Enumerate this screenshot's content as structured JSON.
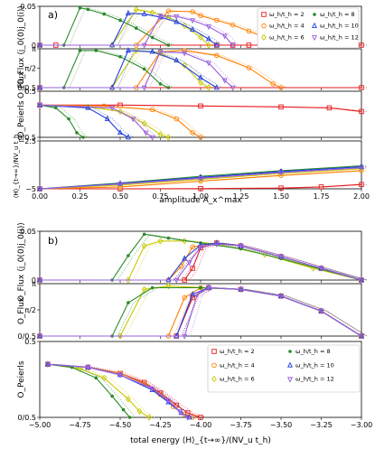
{
  "figure": {
    "panel_a_label": "a)",
    "panel_b_label": "b)"
  },
  "legend": {
    "items": [
      {
        "label": "ω_h/t_h = 2",
        "color": "#e41a1c",
        "marker": "square"
      },
      {
        "label": "ω_h/t_h = 4",
        "color": "#ff7f00",
        "marker": "circle"
      },
      {
        "label": "ω_h/t_h = 6",
        "color": "#c8c800",
        "marker": "diamond"
      },
      {
        "label": "ω_h/t_h = 8",
        "color": "#2a8a2a",
        "marker": "star"
      },
      {
        "label": "ω_h/t_h = 10",
        "color": "#1f3fe0",
        "marker": "triangle-up"
      },
      {
        "label": "ω_h/t_h = 12",
        "color": "#9a60e0",
        "marker": "triangle-down"
      }
    ]
  },
  "chart_data": [
    {
      "panel": "a1",
      "type": "line",
      "ylabel": "O_Flux ⟨j_0(0)j_0(i)⟩",
      "xlim": [
        0,
        2
      ],
      "ylim": [
        0,
        0.05
      ],
      "yticks": [
        "0",
        "0.05"
      ],
      "xticklabels": [],
      "series": [
        {
          "name": "ω_h/t_h = 2",
          "x": [
            0,
            0.1,
            1.1,
            1.2,
            1.3,
            1.4,
            1.5,
            1.6,
            1.7,
            1.8,
            1.9,
            2.0
          ],
          "y": [
            0,
            0,
            0,
            0,
            0,
            0,
            0,
            0,
            0,
            0,
            0,
            0
          ]
        },
        {
          "name": "ω_h/t_h = 4",
          "x": [
            0,
            0.6,
            0.8,
            0.95,
            1.0,
            1.1,
            1.2,
            1.3,
            1.4,
            1.5
          ],
          "y": [
            0,
            0,
            0.044,
            0.043,
            0.038,
            0.032,
            0.026,
            0.018,
            0.01,
            0.0
          ]
        },
        {
          "name": "ω_h/t_h = 6",
          "x": [
            0,
            0.45,
            0.6,
            0.7,
            0.8,
            0.9,
            1.0,
            1.05
          ],
          "y": [
            0,
            0,
            0.046,
            0.042,
            0.036,
            0.025,
            0.01,
            0.0
          ]
        },
        {
          "name": "ω_h/t_h = 8",
          "x": [
            0,
            0.15,
            0.25,
            0.3,
            0.4,
            0.5,
            0.6,
            0.7,
            0.8
          ],
          "y": [
            0,
            0,
            0.048,
            0.046,
            0.04,
            0.032,
            0.022,
            0.01,
            0.0
          ]
        },
        {
          "name": "ω_h/t_h = 10",
          "x": [
            0,
            0.45,
            0.55,
            0.65,
            0.75,
            0.85,
            0.95,
            1.05,
            1.1
          ],
          "y": [
            0,
            0,
            0.041,
            0.04,
            0.036,
            0.03,
            0.02,
            0.008,
            0.0
          ]
        },
        {
          "name": "ω_h/t_h = 12",
          "x": [
            0,
            0.65,
            0.75,
            0.85,
            0.95,
            1.05,
            1.15,
            1.2
          ],
          "y": [
            0,
            0,
            0.038,
            0.037,
            0.032,
            0.024,
            0.012,
            0.0
          ]
        }
      ]
    },
    {
      "panel": "a2",
      "type": "line",
      "ylabel": "O_Flux",
      "xlim": [
        0,
        2
      ],
      "ylim": [
        0,
        3.1416
      ],
      "yticks": [
        "0/0.5",
        "π/2",
        "π"
      ],
      "xticklabels": [],
      "series": [
        {
          "name": "ω_h/t_h = 2",
          "x": [
            0,
            2.0
          ],
          "y": [
            0,
            0
          ]
        },
        {
          "name": "ω_h/t_h = 4",
          "x": [
            0,
            0.6,
            0.75,
            0.9,
            1.1,
            1.3,
            1.45,
            1.5
          ],
          "y": [
            0,
            0,
            2.9,
            3.0,
            2.6,
            1.6,
            0.3,
            0
          ]
        },
        {
          "name": "ω_h/t_h = 6",
          "x": [
            0,
            0.45,
            0.6,
            0.75,
            0.9,
            1.0,
            1.05
          ],
          "y": [
            0,
            0,
            3.0,
            2.8,
            1.8,
            0.4,
            0
          ]
        },
        {
          "name": "ω_h/t_h = 8",
          "x": [
            0,
            0.15,
            0.25,
            0.35,
            0.5,
            0.65,
            0.75,
            0.8
          ],
          "y": [
            0,
            0,
            3.0,
            3.0,
            2.5,
            1.5,
            0.3,
            0
          ]
        },
        {
          "name": "ω_h/t_h = 10",
          "x": [
            0,
            0.45,
            0.55,
            0.7,
            0.85,
            1.0,
            1.1
          ],
          "y": [
            0,
            0,
            3.0,
            2.9,
            2.2,
            0.8,
            0
          ]
        },
        {
          "name": "ω_h/t_h = 12",
          "x": [
            0,
            0.65,
            0.75,
            0.9,
            1.05,
            1.15,
            1.2
          ],
          "y": [
            0,
            0,
            2.9,
            2.8,
            2.0,
            0.6,
            0
          ]
        }
      ]
    },
    {
      "panel": "a3",
      "type": "line",
      "ylabel": "O_Peierls",
      "xlim": [
        0,
        2
      ],
      "ylim": [
        0,
        0.5
      ],
      "yticks": [
        "0/0.5",
        "0.5"
      ],
      "xticklabels": [],
      "series": [
        {
          "name": "ω_h/t_h = 2",
          "x": [
            0,
            0.5,
            1.0,
            1.5,
            1.8,
            2.0
          ],
          "y": [
            0.35,
            0.35,
            0.34,
            0.33,
            0.32,
            0.28
          ]
        },
        {
          "name": "ω_h/t_h = 4",
          "x": [
            0,
            0.4,
            0.7,
            0.85,
            0.95,
            1.0
          ],
          "y": [
            0.35,
            0.34,
            0.3,
            0.2,
            0.05,
            0
          ]
        },
        {
          "name": "ω_h/t_h = 6",
          "x": [
            0,
            0.3,
            0.5,
            0.65,
            0.75,
            0.8
          ],
          "y": [
            0.35,
            0.33,
            0.28,
            0.15,
            0.03,
            0
          ]
        },
        {
          "name": "ω_h/t_h = 8",
          "x": [
            0,
            0.1,
            0.18,
            0.23,
            0.27
          ],
          "y": [
            0.35,
            0.32,
            0.2,
            0.05,
            0
          ]
        },
        {
          "name": "ω_h/t_h = 10",
          "x": [
            0,
            0.3,
            0.42,
            0.5,
            0.55
          ],
          "y": [
            0.35,
            0.32,
            0.2,
            0.05,
            0
          ]
        },
        {
          "name": "ω_h/t_h = 12",
          "x": [
            0,
            0.45,
            0.58,
            0.66,
            0.7
          ],
          "y": [
            0.35,
            0.32,
            0.2,
            0.05,
            0
          ]
        }
      ]
    },
    {
      "panel": "a4",
      "type": "line",
      "xlabel": "amplitude A_x^max",
      "ylabel": "⟨H⟩_{t→∞}/NV_u t_h",
      "xlim": [
        0,
        2
      ],
      "ylim": [
        -5,
        0
      ],
      "yticks": [
        "−5",
        "−2.5"
      ],
      "xticks": [
        "0.00",
        "0.25",
        "0.50",
        "0.75",
        "1.00",
        "1.25",
        "1.50",
        "1.75",
        "2.00"
      ],
      "series": [
        {
          "name": "ω_h/t_h = 2",
          "x": [
            0,
            0.5,
            1.0,
            1.5,
            1.75,
            2.0
          ],
          "y": [
            -5,
            -5,
            -4.98,
            -4.92,
            -4.8,
            -4.55
          ]
        },
        {
          "name": "ω_h/t_h = 4",
          "x": [
            0,
            0.5,
            1.0,
            1.5,
            2.0
          ],
          "y": [
            -5,
            -4.8,
            -4.2,
            -3.6,
            -3.1
          ]
        },
        {
          "name": "ω_h/t_h = 6",
          "x": [
            0,
            0.5,
            1.0,
            1.5,
            2.0
          ],
          "y": [
            -5,
            -4.6,
            -4.0,
            -3.4,
            -2.9
          ]
        },
        {
          "name": "ω_h/t_h = 8",
          "x": [
            0,
            0.5,
            1.0,
            1.5,
            2.0
          ],
          "y": [
            -5,
            -4.4,
            -3.7,
            -3.1,
            -2.6
          ]
        },
        {
          "name": "ω_h/t_h = 10",
          "x": [
            0,
            0.5,
            1.0,
            1.5,
            2.0
          ],
          "y": [
            -5,
            -4.45,
            -3.8,
            -3.2,
            -2.7
          ]
        },
        {
          "name": "ω_h/t_h = 12",
          "x": [
            0,
            0.5,
            1.0,
            1.5,
            2.0
          ],
          "y": [
            -5,
            -4.5,
            -3.9,
            -3.3,
            -2.8
          ]
        }
      ]
    },
    {
      "panel": "b1",
      "type": "line",
      "ylabel": "O_Flux ⟨j_0(0)j_0(i)⟩",
      "xlim": [
        -5,
        -3
      ],
      "ylim": [
        0,
        0.05
      ],
      "yticks": [
        "0",
        "0.05"
      ],
      "xticklabels": [],
      "series": [
        {
          "name": "ω_h/t_h = 2",
          "x": [
            -5,
            -4.1,
            -4.05,
            -4.0,
            -3.9,
            -3.75,
            -3.5,
            -3.25,
            -3.0
          ],
          "y": [
            0,
            0,
            0.012,
            0.033,
            0.038,
            0.035,
            0.024,
            0.012,
            0
          ]
        },
        {
          "name": "ω_h/t_h = 4",
          "x": [
            -5,
            -4.2,
            -4.12,
            -4.05,
            -3.9,
            -3.75,
            -3.5,
            -3.25,
            -3.0
          ],
          "y": [
            0,
            0,
            0.014,
            0.034,
            0.038,
            0.035,
            0.024,
            0.012,
            0
          ]
        },
        {
          "name": "ω_h/t_h = 6",
          "x": [
            -5,
            -4.45,
            -4.35,
            -4.25,
            -4.1,
            -3.9,
            -3.6,
            -3.3,
            -3.0
          ],
          "y": [
            0,
            0,
            0.035,
            0.04,
            0.04,
            0.037,
            0.026,
            0.012,
            0
          ]
        },
        {
          "name": "ω_h/t_h = 8",
          "x": [
            -5,
            -4.55,
            -4.45,
            -4.35,
            -4.2,
            -4.0,
            -3.75,
            -3.5,
            -3.25,
            -3.0
          ],
          "y": [
            0,
            0,
            0.025,
            0.047,
            0.043,
            0.038,
            0.032,
            0.022,
            0.011,
            0
          ]
        },
        {
          "name": "ω_h/t_h = 10",
          "x": [
            -5,
            -4.2,
            -4.1,
            -4.0,
            -3.9,
            -3.75,
            -3.5,
            -3.25,
            -3.0
          ],
          "y": [
            0,
            0,
            0.022,
            0.036,
            0.038,
            0.035,
            0.024,
            0.012,
            0
          ]
        },
        {
          "name": "ω_h/t_h = 12",
          "x": [
            -5,
            -4.15,
            -4.07,
            -4.0,
            -3.9,
            -3.75,
            -3.5,
            -3.25,
            -3.0
          ],
          "y": [
            0,
            0,
            0.018,
            0.034,
            0.037,
            0.035,
            0.024,
            0.012,
            0
          ]
        }
      ]
    },
    {
      "panel": "b2",
      "type": "line",
      "ylabel": "O_Flux",
      "xlim": [
        -5,
        -3
      ],
      "ylim": [
        0,
        3.1416
      ],
      "yticks": [
        "0/0.5",
        "π/2",
        "π"
      ],
      "xticklabels": [],
      "series": [
        {
          "name": "ω_h/t_h = 2",
          "x": [
            -5,
            -4.15,
            -4.05,
            -3.95,
            -3.75,
            -3.5,
            -3.25,
            -3.0
          ],
          "y": [
            0,
            0,
            2.3,
            2.9,
            2.8,
            2.4,
            1.5,
            0
          ]
        },
        {
          "name": "ω_h/t_h = 4",
          "x": [
            -5,
            -4.2,
            -4.1,
            -4.0,
            -3.75,
            -3.5,
            -3.25,
            -3.0
          ],
          "y": [
            0,
            0,
            2.3,
            2.9,
            2.8,
            2.4,
            1.5,
            0
          ]
        },
        {
          "name": "ω_h/t_h = 6",
          "x": [
            -5,
            -4.5,
            -4.35,
            -4.2,
            -3.75,
            -3.5,
            -3.25,
            -3.0
          ],
          "y": [
            0,
            0,
            2.8,
            3.0,
            2.8,
            2.4,
            1.5,
            0
          ]
        },
        {
          "name": "ω_h/t_h = 8",
          "x": [
            -5,
            -4.55,
            -4.45,
            -4.3,
            -4.0,
            -3.75,
            -3.5,
            -3.25,
            -3.0
          ],
          "y": [
            0,
            0,
            2.0,
            2.9,
            2.9,
            2.8,
            2.4,
            1.5,
            0
          ]
        },
        {
          "name": "ω_h/t_h = 10",
          "x": [
            -5,
            -4.15,
            -4.05,
            -3.95,
            -3.75,
            -3.5,
            -3.25,
            -3.0
          ],
          "y": [
            0,
            0,
            2.5,
            2.9,
            2.8,
            2.4,
            1.5,
            0
          ]
        },
        {
          "name": "ω_h/t_h = 12",
          "x": [
            -5,
            -4.1,
            -4.02,
            -3.95,
            -3.75,
            -3.5,
            -3.25,
            -3.0
          ],
          "y": [
            0,
            0,
            2.5,
            2.9,
            2.8,
            2.4,
            1.5,
            0
          ]
        }
      ]
    },
    {
      "panel": "b3",
      "type": "line",
      "xlabel": "total energy ⟨H⟩_{t→∞}/(NV_u t_h)",
      "ylabel": "O_Peierls",
      "xlim": [
        -5,
        -3
      ],
      "ylim": [
        0,
        0.5
      ],
      "yticks": [
        "0/0.5",
        "0.5"
      ],
      "xticks": [
        "−5.00",
        "−4.75",
        "−4.50",
        "−4.25",
        "−4.00",
        "−3.75",
        "−3.50",
        "−3.25",
        "−3.00"
      ],
      "series": [
        {
          "name": "ω_h/t_h = 2",
          "x": [
            -4.95,
            -4.7,
            -4.5,
            -4.35,
            -4.25,
            -4.15,
            -4.08,
            -4.0
          ],
          "y": [
            0.35,
            0.33,
            0.29,
            0.23,
            0.16,
            0.08,
            0.03,
            0
          ]
        },
        {
          "name": "ω_h/t_h = 4",
          "x": [
            -4.95,
            -4.7,
            -4.5,
            -4.35,
            -4.25,
            -4.17,
            -4.1,
            -4.05
          ],
          "y": [
            0.35,
            0.33,
            0.29,
            0.22,
            0.15,
            0.07,
            0.02,
            0
          ]
        },
        {
          "name": "ω_h/t_h = 6",
          "x": [
            -4.95,
            -4.75,
            -4.6,
            -4.45,
            -4.38,
            -4.32
          ],
          "y": [
            0.35,
            0.32,
            0.26,
            0.12,
            0.04,
            0
          ]
        },
        {
          "name": "ω_h/t_h = 8",
          "x": [
            -4.95,
            -4.8,
            -4.65,
            -4.55,
            -4.48,
            -4.44
          ],
          "y": [
            0.35,
            0.33,
            0.26,
            0.14,
            0.05,
            0
          ]
        },
        {
          "name": "ω_h/t_h = 10",
          "x": [
            -4.95,
            -4.7,
            -4.5,
            -4.3,
            -4.2,
            -4.12,
            -4.07
          ],
          "y": [
            0.35,
            0.33,
            0.28,
            0.18,
            0.1,
            0.03,
            0
          ]
        },
        {
          "name": "ω_h/t_h = 12",
          "x": [
            -4.95,
            -4.7,
            -4.5,
            -4.3,
            -4.2,
            -4.13,
            -4.08
          ],
          "y": [
            0.35,
            0.33,
            0.28,
            0.19,
            0.11,
            0.04,
            0
          ]
        }
      ]
    }
  ]
}
